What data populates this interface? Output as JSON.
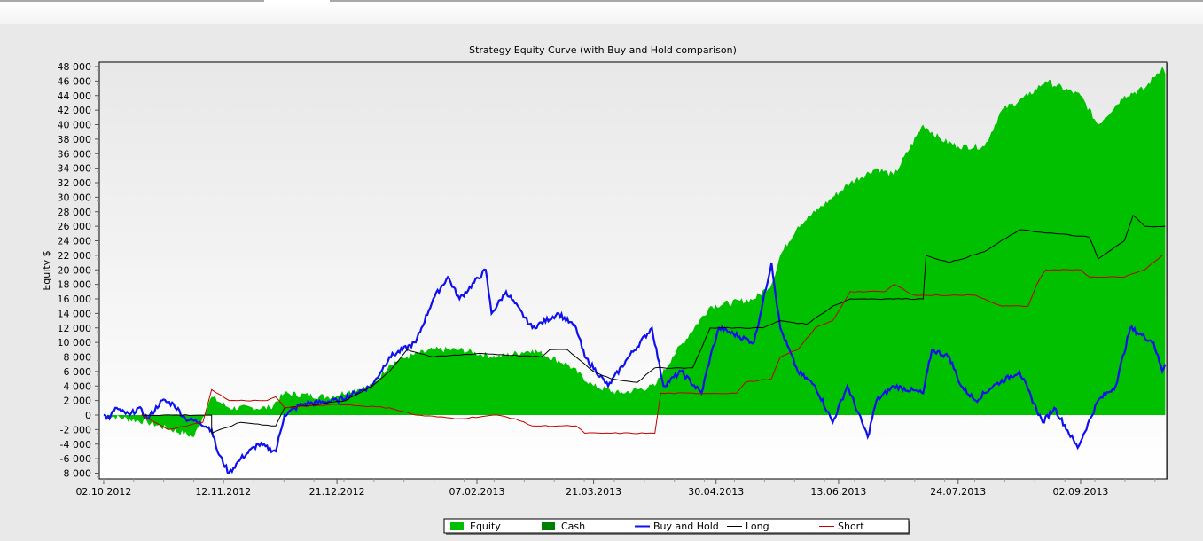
{
  "chart_data": {
    "type": "line",
    "title": "Strategy Equity Curve (with Buy and Hold comparison)",
    "ylabel": "Equity $",
    "xlabel": "",
    "x_unit": "days since 02.10.2012",
    "xlim": [
      -1.5,
      364.5
    ],
    "ylim": [
      -8000,
      48000
    ],
    "yticks": [
      -8000,
      -6000,
      -4000,
      -2000,
      0,
      2000,
      4000,
      6000,
      8000,
      10000,
      12000,
      14000,
      16000,
      18000,
      20000,
      22000,
      24000,
      26000,
      28000,
      30000,
      32000,
      34000,
      36000,
      38000,
      40000,
      42000,
      44000,
      46000,
      48000
    ],
    "ytick_labels": [
      "-8 000",
      "-6 000",
      "-4 000",
      "-2 000",
      "0",
      "2 000",
      "4 000",
      "6 000",
      "8 000",
      "10 000",
      "12 000",
      "14 000",
      "16 000",
      "18 000",
      "20 000",
      "22 000",
      "24 000",
      "26 000",
      "28 000",
      "30 000",
      "32 000",
      "34 000",
      "36 000",
      "38 000",
      "40 000",
      "42 000",
      "44 000",
      "46 000",
      "48 000"
    ],
    "xticks": [
      0,
      41,
      80,
      128,
      168,
      210,
      252,
      293,
      335
    ],
    "xtick_labels": [
      "02.10.2012",
      "12.11.2012",
      "21.12.2012",
      "07.02.2013",
      "21.03.2013",
      "30.04.2013",
      "13.06.2013",
      "24.07.2013",
      "02.09.2013"
    ],
    "legend": {
      "placement": "bottom-center",
      "entries": [
        {
          "label": "Equity",
          "color": "#00c000",
          "kind": "area"
        },
        {
          "label": "Cash",
          "color": "#008000",
          "kind": "area"
        },
        {
          "label": "Buy and Hold",
          "color": "#1010ee",
          "kind": "line"
        },
        {
          "label": "Long",
          "color": "#000000",
          "kind": "line"
        },
        {
          "label": "Short",
          "color": "#c00000",
          "kind": "line"
        }
      ]
    },
    "series": [
      {
        "name": "Equity",
        "type": "area",
        "color": "#00c000",
        "points": [
          [
            0,
            0
          ],
          [
            15,
            -1000
          ],
          [
            31,
            -3000
          ],
          [
            37,
            2500
          ],
          [
            43,
            1000
          ],
          [
            57,
            1000
          ],
          [
            62,
            3000
          ],
          [
            77,
            2500
          ],
          [
            86,
            3500
          ],
          [
            92,
            4000
          ],
          [
            98,
            7000
          ],
          [
            104,
            8000
          ],
          [
            113,
            9000
          ],
          [
            122,
            9000
          ],
          [
            135,
            8000
          ],
          [
            147,
            9000
          ],
          [
            159,
            7000
          ],
          [
            168,
            4000
          ],
          [
            177,
            3000
          ],
          [
            189,
            4000
          ],
          [
            195,
            8000
          ],
          [
            208,
            15000
          ],
          [
            223,
            16000
          ],
          [
            229,
            18000
          ],
          [
            232,
            22000
          ],
          [
            238,
            26000
          ],
          [
            244,
            28000
          ],
          [
            250,
            30000
          ],
          [
            256,
            32000
          ],
          [
            265,
            34000
          ],
          [
            271,
            33000
          ],
          [
            281,
            40000
          ],
          [
            287,
            38000
          ],
          [
            293,
            37000
          ],
          [
            302,
            37000
          ],
          [
            308,
            42000
          ],
          [
            317,
            44000
          ],
          [
            323,
            46000
          ],
          [
            335,
            44000
          ],
          [
            341,
            40000
          ],
          [
            350,
            44000
          ],
          [
            357,
            45000
          ],
          [
            363,
            48000
          ],
          [
            364,
            47000
          ]
        ]
      },
      {
        "name": "Buy and Hold",
        "type": "line",
        "color": "#1010ee",
        "points": [
          [
            0,
            0
          ],
          [
            2,
            -500
          ],
          [
            4,
            1000
          ],
          [
            6,
            500
          ],
          [
            9,
            0
          ],
          [
            12,
            1000
          ],
          [
            15,
            -500
          ],
          [
            20,
            2000
          ],
          [
            24,
            1500
          ],
          [
            28,
            -500
          ],
          [
            33,
            -1000
          ],
          [
            37,
            -2000
          ],
          [
            39,
            -5000
          ],
          [
            43,
            -8000
          ],
          [
            47,
            -6000
          ],
          [
            53,
            -4000
          ],
          [
            59,
            -5000
          ],
          [
            62,
            0
          ],
          [
            68,
            1500
          ],
          [
            80,
            2000
          ],
          [
            92,
            4000
          ],
          [
            98,
            8000
          ],
          [
            107,
            10000
          ],
          [
            113,
            16000
          ],
          [
            118,
            19000
          ],
          [
            122,
            16000
          ],
          [
            131,
            20000
          ],
          [
            133,
            14000
          ],
          [
            138,
            17000
          ],
          [
            147,
            12000
          ],
          [
            156,
            14000
          ],
          [
            162,
            12000
          ],
          [
            165,
            8000
          ],
          [
            173,
            4000
          ],
          [
            180,
            8000
          ],
          [
            188,
            12000
          ],
          [
            192,
            4000
          ],
          [
            198,
            6000
          ],
          [
            205,
            3000
          ],
          [
            208,
            8000
          ],
          [
            211,
            12000
          ],
          [
            223,
            10000
          ],
          [
            229,
            21000
          ],
          [
            232,
            12000
          ],
          [
            238,
            6000
          ],
          [
            244,
            4000
          ],
          [
            250,
            -1000
          ],
          [
            255,
            4000
          ],
          [
            262,
            -3000
          ],
          [
            265,
            2000
          ],
          [
            271,
            4000
          ],
          [
            281,
            3000
          ],
          [
            284,
            9000
          ],
          [
            290,
            8000
          ],
          [
            294,
            4000
          ],
          [
            299,
            2000
          ],
          [
            305,
            4000
          ],
          [
            314,
            6000
          ],
          [
            322,
            -1000
          ],
          [
            326,
            1000
          ],
          [
            334,
            -4500
          ],
          [
            341,
            2000
          ],
          [
            347,
            4000
          ],
          [
            352,
            12000
          ],
          [
            360,
            10000
          ],
          [
            363,
            6000
          ],
          [
            364,
            7000
          ]
        ]
      },
      {
        "name": "Long",
        "type": "line",
        "color": "#000000",
        "points": [
          [
            13,
            0
          ],
          [
            37,
            0
          ],
          [
            37,
            -2500
          ],
          [
            47,
            -1000
          ],
          [
            59,
            -1500
          ],
          [
            62,
            1000
          ],
          [
            74,
            1500
          ],
          [
            83,
            2000
          ],
          [
            92,
            4000
          ],
          [
            98,
            6000
          ],
          [
            104,
            9000
          ],
          [
            113,
            8000
          ],
          [
            129,
            8500
          ],
          [
            150,
            8000
          ],
          [
            153,
            9000
          ],
          [
            159,
            9000
          ],
          [
            168,
            6000
          ],
          [
            174,
            5000
          ],
          [
            183,
            4500
          ],
          [
            189,
            6500
          ],
          [
            202,
            6500
          ],
          [
            208,
            12000
          ],
          [
            226,
            12000
          ],
          [
            232,
            13000
          ],
          [
            241,
            12500
          ],
          [
            250,
            15000
          ],
          [
            256,
            16000
          ],
          [
            268,
            16000
          ],
          [
            281,
            16000
          ],
          [
            282,
            22000
          ],
          [
            290,
            21000
          ],
          [
            302,
            22500
          ],
          [
            314,
            25500
          ],
          [
            338,
            24500
          ],
          [
            341,
            21500
          ],
          [
            350,
            24000
          ],
          [
            353,
            27500
          ],
          [
            357,
            26000
          ],
          [
            364,
            26000
          ]
        ]
      },
      {
        "name": "Short",
        "type": "line",
        "color": "#c00000",
        "points": [
          [
            13,
            0
          ],
          [
            22,
            -2000
          ],
          [
            34,
            -1000
          ],
          [
            37,
            3500
          ],
          [
            43,
            2000
          ],
          [
            56,
            2000
          ],
          [
            59,
            2500
          ],
          [
            62,
            1000
          ],
          [
            80,
            1500
          ],
          [
            98,
            1000
          ],
          [
            107,
            0
          ],
          [
            122,
            -500
          ],
          [
            135,
            0
          ],
          [
            141,
            -500
          ],
          [
            147,
            -1500
          ],
          [
            162,
            -1500
          ],
          [
            165,
            -2500
          ],
          [
            174,
            -2500
          ],
          [
            189,
            -2500
          ],
          [
            191,
            3000
          ],
          [
            217,
            3000
          ],
          [
            220,
            4500
          ],
          [
            229,
            5000
          ],
          [
            232,
            8000
          ],
          [
            238,
            9000
          ],
          [
            244,
            12000
          ],
          [
            250,
            13000
          ],
          [
            256,
            17000
          ],
          [
            268,
            17000
          ],
          [
            271,
            18000
          ],
          [
            278,
            16500
          ],
          [
            293,
            16500
          ],
          [
            299,
            16500
          ],
          [
            308,
            15000
          ],
          [
            317,
            15000
          ],
          [
            320,
            18000
          ],
          [
            323,
            20000
          ],
          [
            335,
            20000
          ],
          [
            338,
            19000
          ],
          [
            350,
            19000
          ],
          [
            357,
            20000
          ],
          [
            363,
            22000
          ]
        ]
      }
    ]
  }
}
